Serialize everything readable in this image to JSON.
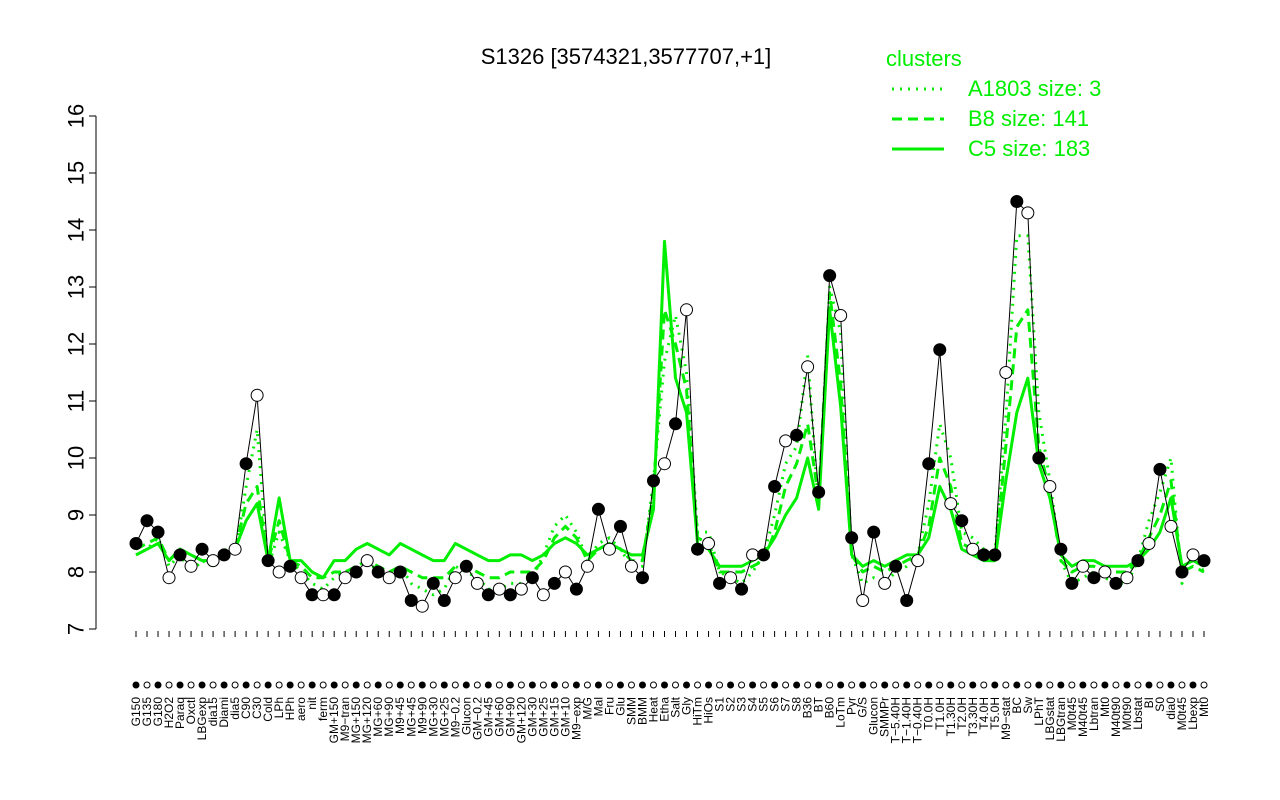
{
  "chart_data": {
    "type": "line",
    "title": "S1326 [3574321,3577707,+1]",
    "xlabel": "",
    "ylabel": "",
    "ylim": [
      7,
      16
    ],
    "yticks": [
      7,
      8,
      9,
      10,
      11,
      12,
      13,
      14,
      15,
      16
    ],
    "grid": false,
    "legend": {
      "title": "clusters",
      "placement": "top-right",
      "entries": [
        {
          "label": "A1803 size: 3",
          "style": "dotted"
        },
        {
          "label": "B8 size: 141",
          "style": "dashed"
        },
        {
          "label": "C5 size: 183",
          "style": "solid"
        }
      ]
    },
    "x_tick_labels": [
      "G150",
      "G135",
      "G180",
      "H2O2",
      "Paraq",
      "Oxctl",
      "LBGexp",
      "dia15",
      "Diami",
      "dia5",
      "C90",
      "C30",
      "Cold",
      "LPh",
      "HPh",
      "aero",
      "nit",
      "ferm",
      "GM+150",
      "M9−tran",
      "MG+150",
      "MG+120",
      "MG+60",
      "MG+90",
      "M9+45",
      "MG+45",
      "M9+90",
      "MG+30",
      "MG+25",
      "M9−0.2",
      "Glucon",
      "GM−0.2",
      "GM+45",
      "GM+60",
      "GM+90",
      "GM+120",
      "GM+30",
      "GM+25",
      "GM+15",
      "GM+10",
      "M9−exp",
      "M/G",
      "Mal",
      "Fru",
      "Glu",
      "SMM",
      "BMM",
      "Heat",
      "Etha",
      "Salt",
      "Gly",
      "HiTm",
      "HiOs",
      "S1",
      "S2",
      "S3",
      "S4",
      "S5",
      "S6",
      "S7",
      "S8",
      "B36",
      "BT",
      "B60",
      "LoTm",
      "Pyr",
      "G/S",
      "Glucon",
      "SMMPr",
      "T−5.40H",
      "T−1.40H",
      "T−0.40H",
      "T0.0H",
      "T1.0H",
      "T1.30H",
      "T2.0H",
      "T3.30H",
      "T4.0H",
      "T5.0H",
      "M9−stat",
      "BC",
      "Sw",
      "LPhT",
      "LBGstat",
      "LBGtran",
      "M0t45",
      "M40t45",
      "Lbtran",
      "Mt0",
      "M40t90",
      "M0t90",
      "Lbstat",
      "BI",
      "S0",
      "dia0",
      "M0t45",
      "Lbexp",
      "Mt0"
    ],
    "series": [
      {
        "name": "A1803 size: 3",
        "style": "dotted",
        "values": [
          8.3,
          8.4,
          8.6,
          8.1,
          8.3,
          8.0,
          8.2,
          8.1,
          8.4,
          8.3,
          9.5,
          10.5,
          8.1,
          8.7,
          8.2,
          8.0,
          7.8,
          7.7,
          7.9,
          8.0,
          8.1,
          8.2,
          8.0,
          7.9,
          8.1,
          7.8,
          7.7,
          7.6,
          7.7,
          8.1,
          8.0,
          7.9,
          7.7,
          7.7,
          7.8,
          7.8,
          7.9,
          8.3,
          8.8,
          9.0,
          8.7,
          8.2,
          8.5,
          8.6,
          8.4,
          8.1,
          8.1,
          9.6,
          11.7,
          12.5,
          11.5,
          8.7,
          8.7,
          8.0,
          7.9,
          7.8,
          8.0,
          8.3,
          9.0,
          9.9,
          10.2,
          11.8,
          9.1,
          13.0,
          12.2,
          8.3,
          7.8,
          7.9,
          7.8,
          8.0,
          8.1,
          8.3,
          9.2,
          10.6,
          10.0,
          8.7,
          8.6,
          8.4,
          8.3,
          10.7,
          13.9,
          13.9,
          10.8,
          9.6,
          8.2,
          7.8,
          7.9,
          8.0,
          7.9,
          7.8,
          7.8,
          8.2,
          8.9,
          9.4,
          10.0,
          7.8,
          8.3,
          8.0
        ]
      },
      {
        "name": "B8 size: 141",
        "style": "dashed",
        "values": [
          8.4,
          8.5,
          8.6,
          8.2,
          8.4,
          8.3,
          8.2,
          8.2,
          8.3,
          8.4,
          9.2,
          9.5,
          8.2,
          8.9,
          8.2,
          8.1,
          7.9,
          7.9,
          8.0,
          8.0,
          8.1,
          8.2,
          8.1,
          8.0,
          8.1,
          8.0,
          7.9,
          7.9,
          7.9,
          8.1,
          8.1,
          8.0,
          7.9,
          7.9,
          8.0,
          8.0,
          8.0,
          8.2,
          8.6,
          8.8,
          8.6,
          8.2,
          8.4,
          8.5,
          8.4,
          8.2,
          8.2,
          9.4,
          12.6,
          12.0,
          11.2,
          8.6,
          8.5,
          8.0,
          8.0,
          8.0,
          8.1,
          8.2,
          8.7,
          9.5,
          9.9,
          10.6,
          9.3,
          12.9,
          11.3,
          8.3,
          8.0,
          8.1,
          8.0,
          8.1,
          8.2,
          8.3,
          8.8,
          10.0,
          9.5,
          8.5,
          8.4,
          8.2,
          8.2,
          10.2,
          12.3,
          12.6,
          10.2,
          9.4,
          8.2,
          8.0,
          8.1,
          8.1,
          8.0,
          8.0,
          8.0,
          8.2,
          8.6,
          9.0,
          9.6,
          8.0,
          8.1,
          8.0
        ]
      },
      {
        "name": "C5 size: 183",
        "style": "solid",
        "values": [
          8.3,
          8.4,
          8.5,
          8.2,
          8.4,
          8.3,
          8.2,
          8.2,
          8.3,
          8.4,
          8.9,
          9.2,
          8.2,
          9.3,
          8.2,
          8.2,
          8.0,
          7.9,
          8.2,
          8.2,
          8.4,
          8.5,
          8.4,
          8.3,
          8.5,
          8.4,
          8.3,
          8.2,
          8.2,
          8.5,
          8.4,
          8.3,
          8.2,
          8.2,
          8.3,
          8.3,
          8.2,
          8.3,
          8.5,
          8.6,
          8.5,
          8.3,
          8.4,
          8.5,
          8.4,
          8.3,
          8.3,
          9.1,
          13.8,
          11.4,
          10.8,
          8.5,
          8.4,
          8.1,
          8.1,
          8.1,
          8.2,
          8.3,
          8.6,
          9.0,
          9.3,
          10.0,
          9.1,
          12.6,
          10.9,
          8.3,
          8.1,
          8.2,
          8.1,
          8.2,
          8.3,
          8.3,
          8.6,
          9.5,
          9.1,
          8.4,
          8.3,
          8.2,
          8.2,
          9.6,
          10.8,
          11.4,
          9.9,
          9.3,
          8.3,
          8.1,
          8.2,
          8.2,
          8.1,
          8.1,
          8.1,
          8.2,
          8.4,
          8.7,
          9.3,
          8.1,
          8.2,
          8.1
        ]
      }
    ],
    "points": {
      "marker_style": "circle, filled black or open white",
      "values": [
        8.5,
        8.9,
        8.7,
        7.9,
        8.3,
        8.1,
        8.4,
        8.2,
        8.3,
        8.4,
        9.9,
        11.1,
        8.2,
        8.0,
        8.1,
        7.9,
        7.6,
        7.6,
        7.6,
        7.9,
        8.0,
        8.2,
        8.0,
        7.9,
        8.0,
        7.5,
        7.4,
        7.8,
        7.5,
        7.9,
        8.1,
        7.8,
        7.6,
        7.7,
        7.6,
        7.7,
        7.9,
        7.6,
        7.8,
        8.0,
        7.7,
        8.1,
        9.1,
        8.4,
        8.8,
        8.1,
        7.9,
        9.6,
        9.9,
        10.6,
        12.6,
        8.4,
        8.5,
        7.8,
        7.9,
        7.7,
        8.3,
        8.3,
        9.5,
        10.3,
        10.4,
        11.6,
        9.4,
        13.2,
        12.5,
        8.6,
        7.5,
        8.7,
        7.8,
        8.1,
        7.5,
        8.2,
        9.9,
        11.9,
        9.2,
        8.9,
        8.4,
        8.3,
        8.3,
        11.5,
        14.5,
        14.3,
        10.0,
        9.5,
        8.4,
        7.8,
        8.1,
        7.9,
        8.0,
        7.8,
        7.9,
        8.2,
        8.5,
        9.8,
        8.8,
        8.0,
        8.3,
        8.2
      ],
      "filled": [
        true,
        true,
        true,
        false,
        true,
        false,
        true,
        false,
        true,
        false,
        true,
        false,
        true,
        false,
        true,
        false,
        true,
        false,
        true,
        false,
        true,
        false,
        true,
        false,
        true,
        true,
        false,
        true,
        true,
        false,
        true,
        false,
        true,
        false,
        true,
        false,
        true,
        false,
        true,
        false,
        true,
        false,
        true,
        false,
        true,
        false,
        true,
        true,
        false,
        true,
        false,
        true,
        false,
        true,
        false,
        true,
        false,
        true,
        true,
        false,
        true,
        false,
        true,
        true,
        false,
        true,
        false,
        true,
        false,
        true,
        true,
        false,
        true,
        true,
        false,
        true,
        false,
        true,
        true,
        false,
        true,
        false,
        true,
        false,
        true,
        true,
        false,
        true,
        false,
        true,
        false,
        true,
        false,
        true,
        false,
        true,
        false,
        true
      ]
    }
  }
}
